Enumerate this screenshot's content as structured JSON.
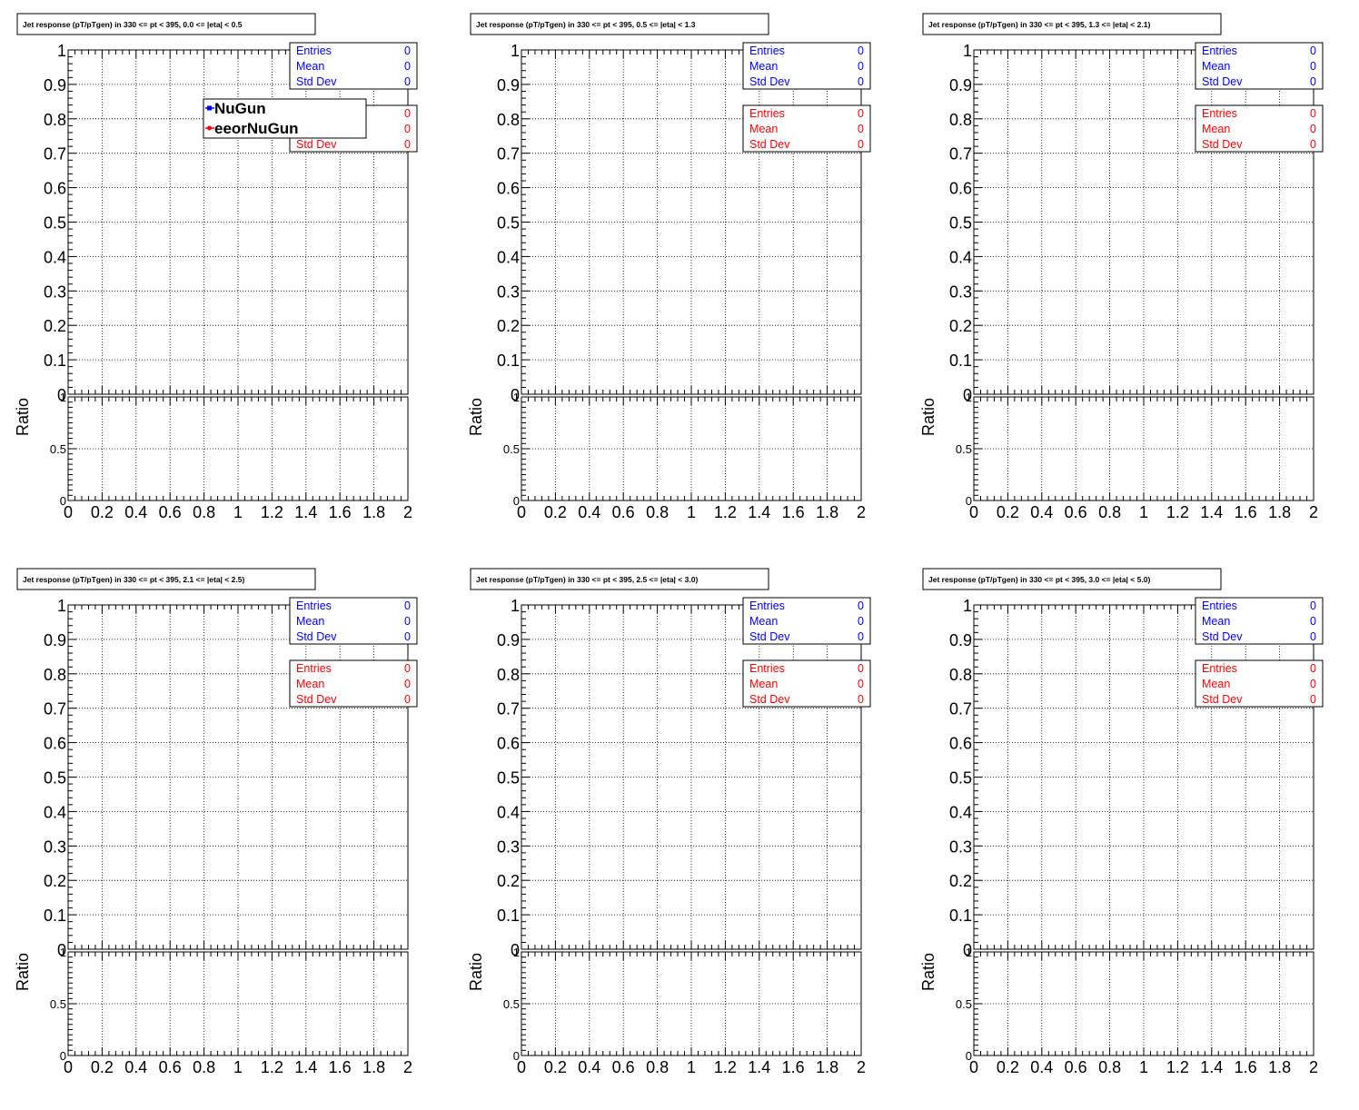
{
  "colors": {
    "blue": "#0000ff",
    "red": "#ff0000",
    "axis": "#000000",
    "grid": "#000000"
  },
  "stats_labels": {
    "entries": "Entries",
    "mean": "Mean",
    "std": "Std Dev"
  },
  "legend": {
    "entries": [
      {
        "label": "NuGun",
        "color": "#0000ff"
      },
      {
        "label": "eeorNuGun",
        "color": "#ff0000"
      }
    ]
  },
  "chart_data": [
    {
      "type": "line",
      "title": "Jet response (pT/pTgen) in 330 <= pt < 395, 0.0 <= |eta| < 0.5",
      "xlabel": "",
      "ylabel": "",
      "ratio_ylabel": "Ratio",
      "xlim": [
        0,
        2
      ],
      "ylim": [
        0,
        1
      ],
      "ratio_ylim": [
        0,
        1
      ],
      "grid": true,
      "show_legend": true,
      "x_ticks": [
        "0",
        "0.2",
        "0.4",
        "0.6",
        "0.8",
        "1",
        "1.2",
        "1.4",
        "1.6",
        "1.8",
        "2"
      ],
      "y_ticks": [
        "0",
        "0.1",
        "0.2",
        "0.3",
        "0.4",
        "0.5",
        "0.6",
        "0.7",
        "0.8",
        "0.9",
        "1"
      ],
      "ratio_ticks": [
        "0",
        "0.5",
        "1"
      ],
      "series": [
        {
          "name": "NuGun",
          "color": "#0000ff",
          "stats": {
            "entries": "0",
            "mean": "0",
            "std": "0"
          },
          "values": []
        },
        {
          "name": "eeorNuGun",
          "color": "#ff0000",
          "stats": {
            "entries": "0",
            "mean": "0",
            "std": "0"
          },
          "values": []
        }
      ]
    },
    {
      "type": "line",
      "title": "Jet response (pT/pTgen) in 330 <= pt < 395, 0.5 <= |eta| < 1.3",
      "xlabel": "",
      "ylabel": "",
      "ratio_ylabel": "Ratio",
      "xlim": [
        0,
        2
      ],
      "ylim": [
        0,
        1
      ],
      "ratio_ylim": [
        0,
        1
      ],
      "grid": true,
      "show_legend": false,
      "x_ticks": [
        "0",
        "0.2",
        "0.4",
        "0.6",
        "0.8",
        "1",
        "1.2",
        "1.4",
        "1.6",
        "1.8",
        "2"
      ],
      "y_ticks": [
        "0",
        "0.1",
        "0.2",
        "0.3",
        "0.4",
        "0.5",
        "0.6",
        "0.7",
        "0.8",
        "0.9",
        "1"
      ],
      "ratio_ticks": [
        "0",
        "0.5",
        "1"
      ],
      "series": [
        {
          "color": "#0000ff",
          "stats": {
            "entries": "0",
            "mean": "0",
            "std": "0"
          },
          "values": []
        },
        {
          "color": "#ff0000",
          "stats": {
            "entries": "0",
            "mean": "0",
            "std": "0"
          },
          "values": []
        }
      ]
    },
    {
      "type": "line",
      "title": "Jet response (pT/pTgen) in 330 <= pt < 395, 1.3 <= |eta| < 2.1)",
      "xlabel": "",
      "ylabel": "",
      "ratio_ylabel": "Ratio",
      "xlim": [
        0,
        2
      ],
      "ylim": [
        0,
        1
      ],
      "ratio_ylim": [
        0,
        1
      ],
      "grid": true,
      "show_legend": false,
      "x_ticks": [
        "0",
        "0.2",
        "0.4",
        "0.6",
        "0.8",
        "1",
        "1.2",
        "1.4",
        "1.6",
        "1.8",
        "2"
      ],
      "y_ticks": [
        "0",
        "0.1",
        "0.2",
        "0.3",
        "0.4",
        "0.5",
        "0.6",
        "0.7",
        "0.8",
        "0.9",
        "1"
      ],
      "ratio_ticks": [
        "0",
        "0.5",
        "1"
      ],
      "series": [
        {
          "color": "#0000ff",
          "stats": {
            "entries": "0",
            "mean": "0",
            "std": "0"
          },
          "values": []
        },
        {
          "color": "#ff0000",
          "stats": {
            "entries": "0",
            "mean": "0",
            "std": "0"
          },
          "values": []
        }
      ]
    },
    {
      "type": "line",
      "title": "Jet response (pT/pTgen) in 330 <= pt < 395, 2.1 <= |eta| < 2.5)",
      "xlabel": "",
      "ylabel": "",
      "ratio_ylabel": "Ratio",
      "xlim": [
        0,
        2
      ],
      "ylim": [
        0,
        1
      ],
      "ratio_ylim": [
        0,
        1
      ],
      "grid": true,
      "show_legend": false,
      "x_ticks": [
        "0",
        "0.2",
        "0.4",
        "0.6",
        "0.8",
        "1",
        "1.2",
        "1.4",
        "1.6",
        "1.8",
        "2"
      ],
      "y_ticks": [
        "0",
        "0.1",
        "0.2",
        "0.3",
        "0.4",
        "0.5",
        "0.6",
        "0.7",
        "0.8",
        "0.9",
        "1"
      ],
      "ratio_ticks": [
        "0",
        "0.5",
        "1"
      ],
      "series": [
        {
          "color": "#0000ff",
          "stats": {
            "entries": "0",
            "mean": "0",
            "std": "0"
          },
          "values": []
        },
        {
          "color": "#ff0000",
          "stats": {
            "entries": "0",
            "mean": "0",
            "std": "0"
          },
          "values": []
        }
      ]
    },
    {
      "type": "line",
      "title": "Jet response (pT/pTgen) in 330 <= pt < 395, 2.5 <= |eta| < 3.0)",
      "xlabel": "",
      "ylabel": "",
      "ratio_ylabel": "Ratio",
      "xlim": [
        0,
        2
      ],
      "ylim": [
        0,
        1
      ],
      "ratio_ylim": [
        0,
        1
      ],
      "grid": true,
      "show_legend": false,
      "x_ticks": [
        "0",
        "0.2",
        "0.4",
        "0.6",
        "0.8",
        "1",
        "1.2",
        "1.4",
        "1.6",
        "1.8",
        "2"
      ],
      "y_ticks": [
        "0",
        "0.1",
        "0.2",
        "0.3",
        "0.4",
        "0.5",
        "0.6",
        "0.7",
        "0.8",
        "0.9",
        "1"
      ],
      "ratio_ticks": [
        "0",
        "0.5",
        "1"
      ],
      "series": [
        {
          "color": "#0000ff",
          "stats": {
            "entries": "0",
            "mean": "0",
            "std": "0"
          },
          "values": []
        },
        {
          "color": "#ff0000",
          "stats": {
            "entries": "0",
            "mean": "0",
            "std": "0"
          },
          "values": []
        }
      ]
    },
    {
      "type": "line",
      "title": "Jet response (pT/pTgen) in 330 <= pt < 395, 3.0 <= |eta| < 5.0)",
      "xlabel": "",
      "ylabel": "",
      "ratio_ylabel": "Ratio",
      "xlim": [
        0,
        2
      ],
      "ylim": [
        0,
        1
      ],
      "ratio_ylim": [
        0,
        1
      ],
      "grid": true,
      "show_legend": false,
      "x_ticks": [
        "0",
        "0.2",
        "0.4",
        "0.6",
        "0.8",
        "1",
        "1.2",
        "1.4",
        "1.6",
        "1.8",
        "2"
      ],
      "y_ticks": [
        "0",
        "0.1",
        "0.2",
        "0.3",
        "0.4",
        "0.5",
        "0.6",
        "0.7",
        "0.8",
        "0.9",
        "1"
      ],
      "ratio_ticks": [
        "0",
        "0.5",
        "1"
      ],
      "series": [
        {
          "color": "#0000ff",
          "stats": {
            "entries": "0",
            "mean": "0",
            "std": "0"
          },
          "values": []
        },
        {
          "color": "#ff0000",
          "stats": {
            "entries": "0",
            "mean": "0",
            "std": "0"
          },
          "values": []
        }
      ]
    }
  ]
}
